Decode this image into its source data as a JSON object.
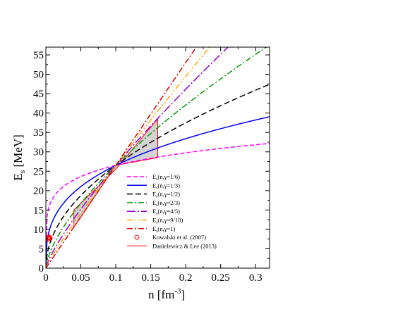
{
  "chart_data": {
    "type": "line",
    "xlabel": "n [fm",
    "xlabel_sup": "-3",
    "xlabel_close": "]",
    "ylabel": "E",
    "ylabel_sub": "s",
    "ylabel_unit": " [MeV]",
    "xlim": [
      0,
      0.32
    ],
    "ylim": [
      0,
      57
    ],
    "x_ticks": [
      0,
      0.05,
      0.1,
      0.15,
      0.2,
      0.25,
      0.3
    ],
    "x_tick_labels": [
      "0",
      "0.05",
      "0.1",
      "0.15",
      "0.2",
      "0.25",
      "0.3"
    ],
    "y_ticks": [
      0,
      5,
      10,
      15,
      20,
      25,
      30,
      35,
      40,
      45,
      50,
      55
    ],
    "y_tick_labels": [
      "0",
      "5",
      "10",
      "15",
      "20",
      "25",
      "30",
      "35",
      "40",
      "45",
      "50",
      "55"
    ],
    "grid": false,
    "legend_position": "lower-right",
    "reference_density": 0.1,
    "reference_energy": 26.5,
    "series": [
      {
        "name": "E",
        "name_sub": "s",
        "name_args": "(n,γ=1/6)",
        "gamma": 0.16667,
        "color": "#ff00ff",
        "dash": "6,3"
      },
      {
        "name": "E",
        "name_sub": "s",
        "name_args": "(n,γ=1/3)",
        "gamma": 0.33333,
        "color": "#0000ff",
        "dash": ""
      },
      {
        "name": "E",
        "name_sub": "s",
        "name_args": "(n,γ=1/2)",
        "gamma": 0.5,
        "color": "#000000",
        "dash": "8,4"
      },
      {
        "name": "E",
        "name_sub": "s",
        "name_args": "(n,γ=2/3)",
        "gamma": 0.66667,
        "color": "#009900",
        "dash": "8,3,2,3"
      },
      {
        "name": "E",
        "name_sub": "s",
        "name_args": "(n,γ=4/5)",
        "gamma": 0.8,
        "color": "#9900cc",
        "dash": "12,3,2,3"
      },
      {
        "name": "E",
        "name_sub": "s",
        "name_args": "(n,γ=9/10)",
        "gamma": 0.9,
        "color": "#ffa500",
        "dash": "8,3,2,3,2,3"
      },
      {
        "name": "E",
        "name_sub": "s",
        "name_args": "(n,γ=1)",
        "gamma": 1.0,
        "color": "#dd0000",
        "dash": "8,3,2,3"
      }
    ],
    "kowalski": {
      "name": "Kowalski et al. (2007)",
      "color": "#ff0000",
      "points": [
        [
          0.003,
          7.8
        ],
        [
          0.0035,
          7.5
        ],
        [
          0.004,
          7.9
        ],
        [
          0.005,
          8.0
        ],
        [
          0.006,
          7.7
        ]
      ]
    },
    "danielewicz": {
      "name": "Danielewicz & Lee (2013)",
      "color": "#ff0000",
      "fill": "#d3d3d3",
      "region": [
        [
          0.04,
          10.5
        ],
        [
          0.04,
          15.0
        ],
        [
          0.1,
          25.5
        ],
        [
          0.16,
          38.5
        ],
        [
          0.16,
          28.5
        ],
        [
          0.1,
          26.5
        ]
      ]
    }
  }
}
